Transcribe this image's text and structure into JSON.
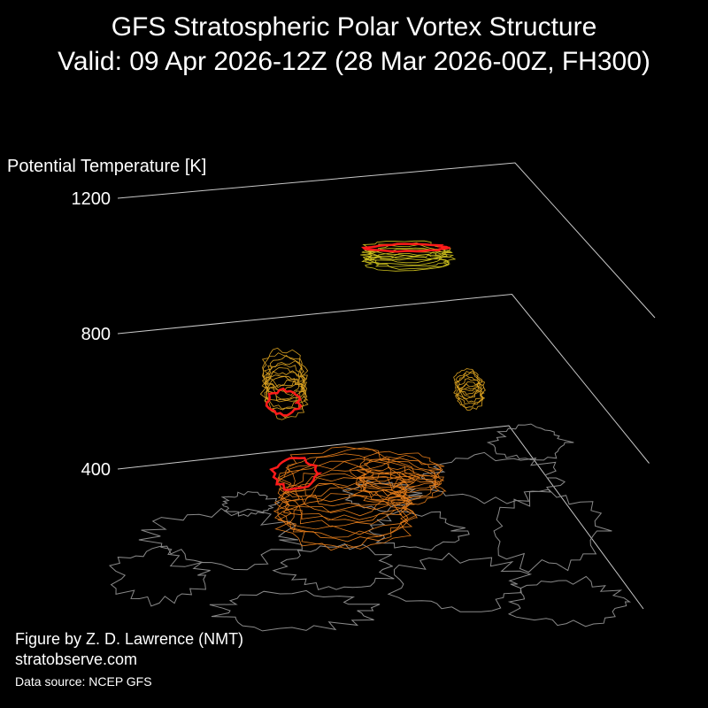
{
  "title": {
    "line1": "GFS Stratospheric Polar Vortex Structure",
    "line2": "Valid: 09 Apr 2026-12Z  (28 Mar 2026-00Z, FH300)"
  },
  "chart_data": {
    "type": "3d-isosurface",
    "zlabel": "Potential Temperature [K]",
    "zticks": [
      1200,
      800,
      400
    ],
    "zlim": [
      400,
      1200
    ],
    "grid": true,
    "colors": {
      "background": "#000000",
      "grid": "#c8c8c8",
      "coastline": "#8a8a8a",
      "low_level_contours": "#e07a1a",
      "mid_level_contours": "#d9a020",
      "upper_level_contours": "#cfc21e",
      "vortex_edge": "#ff1a1a"
    }
  },
  "credits": {
    "line1": "Figure by Z. D. Lawrence (NMT)",
    "line2": "stratobserve.com",
    "source": "Data source: NCEP GFS"
  }
}
